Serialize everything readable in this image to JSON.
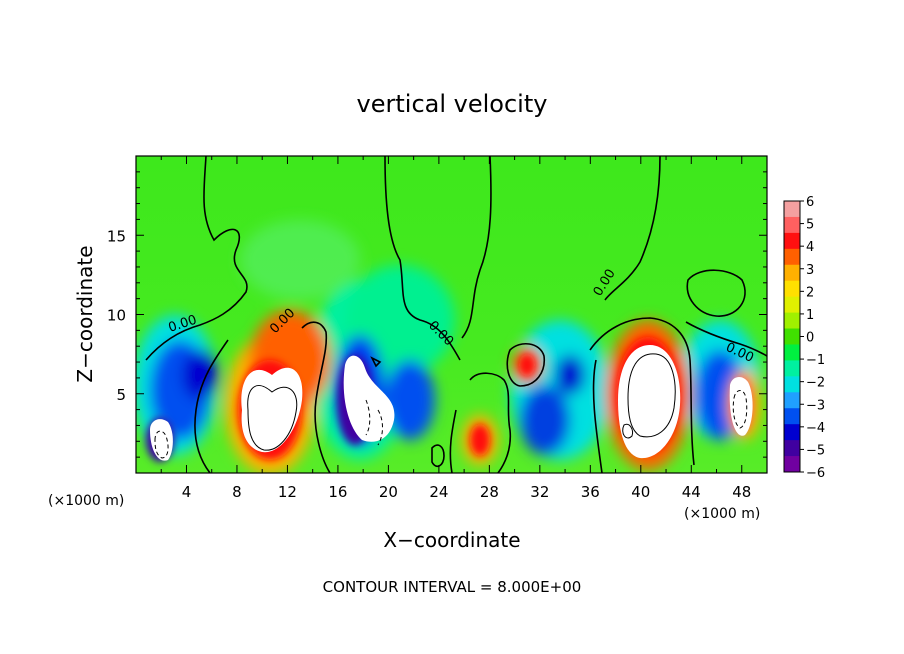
{
  "chart_data": {
    "type": "heatmap",
    "title": "vertical velocity",
    "xlabel": "X−coordinate",
    "ylabel": "Z−coordinate",
    "x_unit_left": "(×1000 m)",
    "x_unit_right": "(×1000 m)",
    "xlim": [
      0,
      50
    ],
    "ylim": [
      0,
      20
    ],
    "x_ticks": [
      4,
      8,
      12,
      16,
      20,
      24,
      28,
      32,
      36,
      40,
      44,
      48
    ],
    "y_ticks": [
      5,
      10,
      15
    ],
    "contour_label": "0.00",
    "colorbar": {
      "ticks": [
        "6",
        "5",
        "4",
        "3",
        "2",
        "1",
        "0",
        "−1",
        "−2",
        "−3",
        "−4",
        "−5",
        "−6"
      ],
      "range": [
        -6,
        6
      ],
      "colors": [
        "#f4a0a0",
        "#ff6060",
        "#ff1010",
        "#ff6000",
        "#ffb000",
        "#ffe000",
        "#e0f000",
        "#a0f000",
        "#40e000",
        "#00f040",
        "#00f0a0",
        "#00e0e0",
        "#20a0ff",
        "#0050f0",
        "#0000d0",
        "#4000a0",
        "#7000a0"
      ]
    },
    "features": [
      {
        "x": 1.5,
        "z": 2.5,
        "w": -6
      },
      {
        "x": 4.5,
        "z": 5.5,
        "w": -4.5
      },
      {
        "x": 10.5,
        "z": 4.5,
        "w": 6
      },
      {
        "x": 12.5,
        "z": 7,
        "w": 4
      },
      {
        "x": 18.5,
        "z": 4,
        "w": -6
      },
      {
        "x": 21.5,
        "z": 5,
        "w": -3.5
      },
      {
        "x": 27,
        "z": 2,
        "w": 4
      },
      {
        "x": 30.5,
        "z": 6.5,
        "w": 3.5
      },
      {
        "x": 33,
        "z": 3.5,
        "w": -4
      },
      {
        "x": 41,
        "z": 5,
        "w": 6
      },
      {
        "x": 46,
        "z": 5,
        "w": -4.5
      },
      {
        "x": 47.5,
        "z": 4.5,
        "w": 5
      },
      {
        "x": 20,
        "z": 10,
        "w": -2
      }
    ],
    "annotation": "CONTOUR INTERVAL = 8.000E+00"
  }
}
